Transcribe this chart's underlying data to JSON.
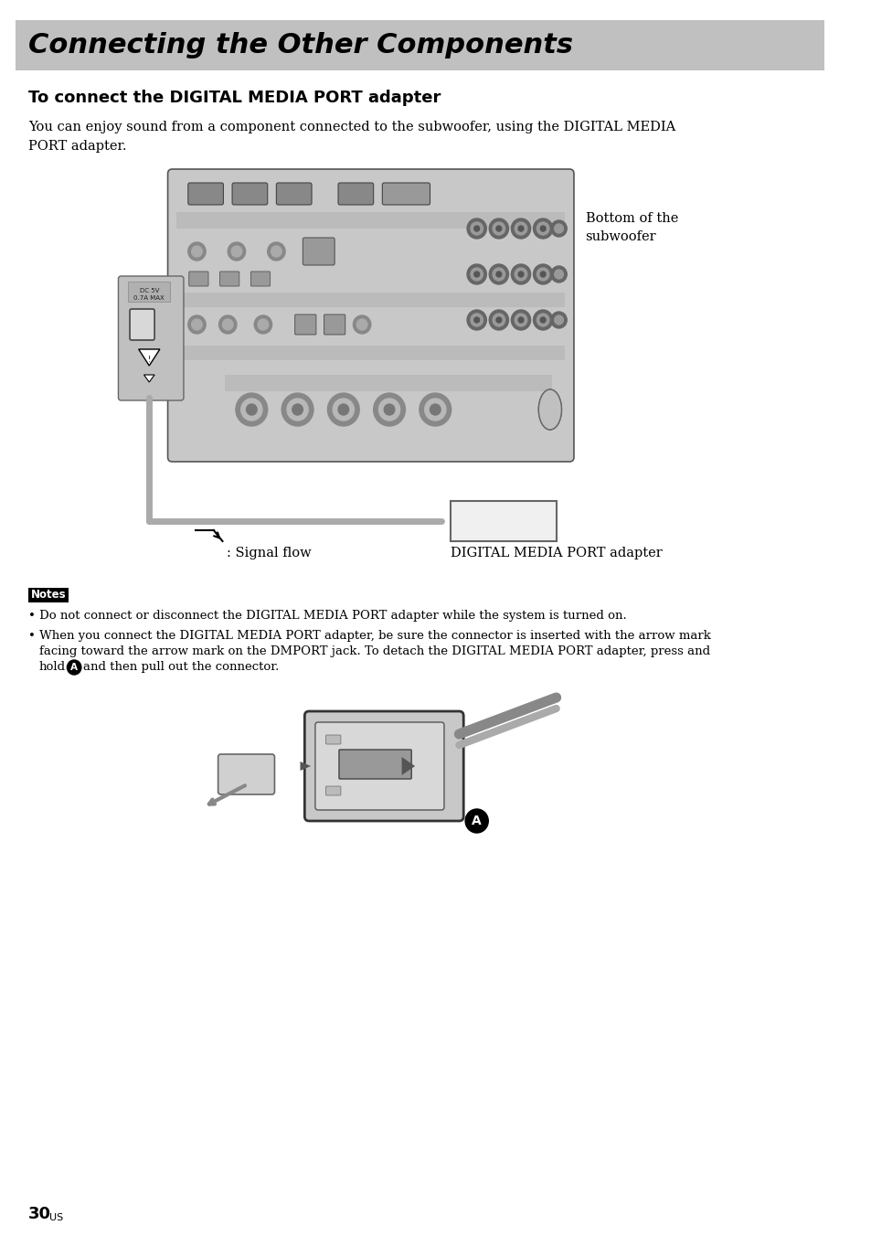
{
  "page_bg": "#ffffff",
  "header_bg": "#c0c0c0",
  "header_text": "Connecting the Other Components",
  "header_text_color": "#000000",
  "section_title": "To connect the DIGITAL MEDIA PORT adapter",
  "body_line1": "You can enjoy sound from a component connected to the subwoofer, using the DIGITAL MEDIA",
  "body_line2": "PORT adapter.",
  "caption_bottom_of": "Bottom of the",
  "caption_subwoofer": "subwoofer",
  "caption_signal_flow": ": Signal flow",
  "caption_dmport": "DIGITAL MEDIA PORT adapter",
  "notes_label": "Notes",
  "note1": "Do not connect or disconnect the DIGITAL MEDIA PORT adapter while the system is turned on.",
  "note2_l1": "When you connect the DIGITAL MEDIA PORT adapter, be sure the connector is inserted with the arrow mark",
  "note2_l2": "facing toward the arrow mark on the DMPORT jack. To detach the DIGITAL MEDIA PORT adapter, press and",
  "note2_l3a": "hold",
  "note2_l3b": "and then pull out the connector.",
  "page_number": "30",
  "page_suffix": "US"
}
